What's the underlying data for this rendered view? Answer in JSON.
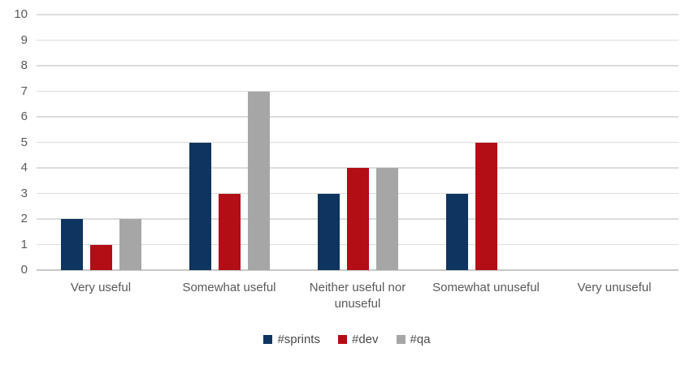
{
  "chart_data": {
    "type": "bar",
    "title": "",
    "categories": [
      "Very useful",
      "Somewhat useful",
      "Neither useful nor unuseful",
      "Somewhat unuseful",
      "Very unuseful"
    ],
    "series": [
      {
        "name": "#sprints",
        "color": "#0e3560",
        "values": [
          2,
          5,
          3,
          3,
          0
        ]
      },
      {
        "name": "#dev",
        "color": "#b30d16",
        "values": [
          1,
          3,
          4,
          5,
          0
        ]
      },
      {
        "name": "#qa",
        "color": "#a6a6a6",
        "values": [
          2,
          7,
          4,
          0,
          0
        ]
      }
    ],
    "xlabel": "",
    "ylabel": "",
    "ylim": [
      0,
      10
    ],
    "ytick_step": 1,
    "grid": true,
    "legend_position": "bottom"
  },
  "colors": {
    "gridline": "#dcdcdc",
    "axis_line": "#c8c8c8",
    "tick_label": "#595959",
    "category_label": "#595959",
    "legend_label": "#4a4a4a",
    "background": "#ffffff"
  }
}
